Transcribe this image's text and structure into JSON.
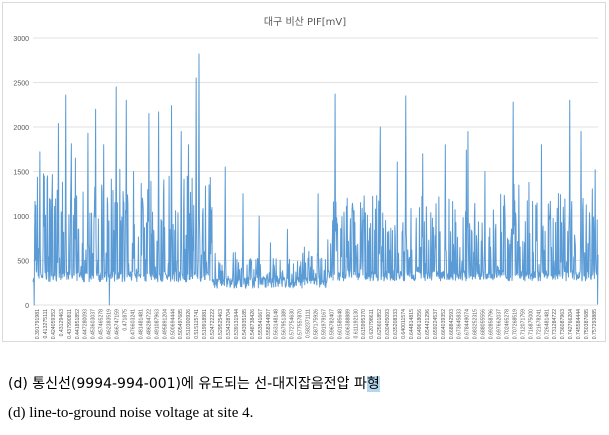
{
  "chart_data": {
    "type": "line",
    "title": "대구 비산 PIF[mV]",
    "xlabel": "",
    "ylabel": "",
    "ylim": [
      0,
      3000
    ],
    "yticks": [
      0,
      500,
      1000,
      1500,
      2000,
      2500,
      3000
    ],
    "grid": true,
    "legend": "none",
    "color": "#5B9BD5",
    "x_tick_labels": [
      "0.391791981",
      "0.413275111",
      "0.424059352",
      "0.43129463",
      "0.437990811",
      "0.441851852",
      "0.447280093",
      "0.453603037",
      "0.457465278",
      "0.462383519",
      "0.466747159",
      "0.471875",
      "0.476603241",
      "0.481481481",
      "0.486284722",
      "0.491087963",
      "0.495891204",
      "0.500694444",
      "0.505497685",
      "0.510300926",
      "0.515115741",
      "0.519918981",
      "0.524722222",
      "0.529525463",
      "0.534328704",
      "0.539131944",
      "0.543935185",
      "0.548738426",
      "0.553541667",
      "0.558344907",
      "0.563148148",
      "0.567951389",
      "0.572754630",
      "0.577557870",
      "0.582371111",
      "0.587175926",
      "0.591979167",
      "0.596782407",
      "0.601585648",
      "0.606388889",
      "0.611192130",
      "0.615995370",
      "0.620798611",
      "0.625601852",
      "0.630405093",
      "0.635208333",
      "0.640011574",
      "0.644814815",
      "0.649618056",
      "0.654421296",
      "0.659224537",
      "0.664039352",
      "0.668842593",
      "0.673645833",
      "0.678449074",
      "0.683252315",
      "0.688055556",
      "0.692858796",
      "0.697662037",
      "0.702465278",
      "0.707268519",
      "0.712071759",
      "0.716875000",
      "0.721678241",
      "0.726481481",
      "0.731284722",
      "0.736087963",
      "0.742766204",
      "0.745584444",
      "0.750387685",
      "0.757293885"
    ],
    "peaks": [
      {
        "pos": 0.005,
        "value": 1120
      },
      {
        "pos": 0.012,
        "value": 1720
      },
      {
        "pos": 0.02,
        "value": 1450
      },
      {
        "pos": 0.045,
        "value": 2040
      },
      {
        "pos": 0.058,
        "value": 2360
      },
      {
        "pos": 0.075,
        "value": 1650
      },
      {
        "pos": 0.097,
        "value": 1930
      },
      {
        "pos": 0.111,
        "value": 2200
      },
      {
        "pos": 0.125,
        "value": 1800
      },
      {
        "pos": 0.147,
        "value": 2450
      },
      {
        "pos": 0.165,
        "value": 2300
      },
      {
        "pos": 0.178,
        "value": 1500
      },
      {
        "pos": 0.205,
        "value": 2150
      },
      {
        "pos": 0.222,
        "value": 2170
      },
      {
        "pos": 0.245,
        "value": 2240
      },
      {
        "pos": 0.262,
        "value": 1950
      },
      {
        "pos": 0.275,
        "value": 1800
      },
      {
        "pos": 0.289,
        "value": 2550
      },
      {
        "pos": 0.294,
        "value": 2820
      },
      {
        "pos": 0.312,
        "value": 1350
      },
      {
        "pos": 0.34,
        "value": 1550
      },
      {
        "pos": 0.372,
        "value": 1250
      },
      {
        "pos": 0.4,
        "value": 1000
      },
      {
        "pos": 0.42,
        "value": 700
      },
      {
        "pos": 0.45,
        "value": 850
      },
      {
        "pos": 0.48,
        "value": 650
      },
      {
        "pos": 0.505,
        "value": 1250
      },
      {
        "pos": 0.535,
        "value": 2370
      },
      {
        "pos": 0.556,
        "value": 1200
      },
      {
        "pos": 0.58,
        "value": 1150
      },
      {
        "pos": 0.615,
        "value": 2000
      },
      {
        "pos": 0.66,
        "value": 2350
      },
      {
        "pos": 0.69,
        "value": 1700
      },
      {
        "pos": 0.73,
        "value": 1800
      },
      {
        "pos": 0.77,
        "value": 1950
      },
      {
        "pos": 0.8,
        "value": 1500
      },
      {
        "pos": 0.85,
        "value": 2280
      },
      {
        "pos": 0.9,
        "value": 1800
      },
      {
        "pos": 0.95,
        "value": 2300
      },
      {
        "pos": 0.97,
        "value": 1950
      },
      {
        "pos": 0.995,
        "value": 1520
      }
    ],
    "dips": [
      {
        "pos": 0.002,
        "value": 0
      },
      {
        "pos": 0.135,
        "value": 0
      },
      {
        "pos": 0.999,
        "value": 10
      }
    ],
    "regimes": [
      {
        "from": 0.0,
        "to": 0.32,
        "floor": 300,
        "amp": 1200
      },
      {
        "from": 0.32,
        "to": 0.52,
        "floor": 230,
        "amp": 300
      },
      {
        "from": 0.52,
        "to": 1.0,
        "floor": 310,
        "amp": 900
      }
    ]
  },
  "caption": {
    "korean_pre": "(d) 통신선(9994-994-001)에 유도되는 선-대지잡음전압 파",
    "korean_highlight": "형",
    "english": "(d) line-to-ground noise voltage at site 4."
  }
}
